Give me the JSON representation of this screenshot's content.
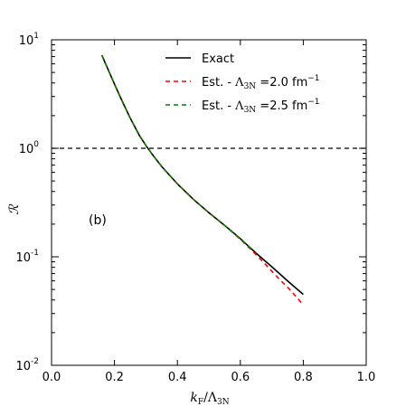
{
  "chart_data": {
    "type": "line",
    "xlabel": "k_F/Λ_3N",
    "ylabel": "R",
    "xlim": [
      0.0,
      1.0
    ],
    "ylim": [
      0.01,
      10
    ],
    "yscale": "log",
    "x_ticks": [
      "0.0",
      "0.2",
      "0.4",
      "0.6",
      "0.8",
      "1.0"
    ],
    "y_ticks": [
      {
        "value": 0.01,
        "base": "10",
        "exp": "-2"
      },
      {
        "value": 0.1,
        "base": "10",
        "exp": "-1"
      },
      {
        "value": 1,
        "base": "10",
        "exp": "0"
      },
      {
        "value": 10,
        "base": "10",
        "exp": "1"
      }
    ],
    "panel_label": "(b)",
    "reference_line": {
      "y": 1.0,
      "style": "dashed",
      "color": "#000000"
    },
    "legend": {
      "position": "top-right",
      "entries": [
        {
          "text": "Exact",
          "pre": "",
          "sym": "",
          "sub": "",
          "post": ""
        },
        {
          "text": "",
          "pre": "Est. - ",
          "sym": "Λ",
          "sub": "3N",
          "post": " =2.0 fm",
          "sup": "−1"
        },
        {
          "text": "",
          "pre": "Est. - ",
          "sym": "Λ",
          "sub": "3N",
          "post": " =2.5 fm",
          "sup": "−1"
        }
      ]
    },
    "series": [
      {
        "color": "#000000",
        "style": "solid",
        "x": [
          0.16,
          0.18,
          0.2,
          0.22,
          0.25,
          0.28,
          0.3,
          0.32,
          0.35,
          0.4,
          0.45,
          0.5,
          0.55,
          0.6,
          0.65,
          0.7,
          0.75,
          0.8
        ],
        "y": [
          7.2,
          5.3,
          3.9,
          2.9,
          1.9,
          1.3,
          1.06,
          0.88,
          0.68,
          0.47,
          0.34,
          0.255,
          0.195,
          0.147,
          0.108,
          0.081,
          0.06,
          0.045
        ]
      },
      {
        "color": "#ff0000",
        "style": "dashed",
        "x": [
          0.16,
          0.18,
          0.2,
          0.22,
          0.25,
          0.28,
          0.3,
          0.32,
          0.35,
          0.4,
          0.45,
          0.5,
          0.55,
          0.6,
          0.64,
          0.68,
          0.72,
          0.76,
          0.8
        ],
        "y": [
          7.2,
          5.3,
          3.9,
          2.9,
          1.9,
          1.3,
          1.06,
          0.88,
          0.68,
          0.47,
          0.34,
          0.255,
          0.195,
          0.145,
          0.112,
          0.085,
          0.064,
          0.049,
          0.036
        ]
      },
      {
        "color": "#008000",
        "style": "dashed",
        "x": [
          0.16,
          0.18,
          0.2,
          0.22,
          0.25,
          0.28,
          0.3,
          0.32,
          0.35,
          0.4,
          0.45,
          0.5,
          0.55,
          0.6,
          0.64
        ],
        "y": [
          7.2,
          5.3,
          3.9,
          2.9,
          1.9,
          1.3,
          1.06,
          0.88,
          0.68,
          0.47,
          0.34,
          0.255,
          0.195,
          0.147,
          0.115
        ]
      }
    ]
  }
}
